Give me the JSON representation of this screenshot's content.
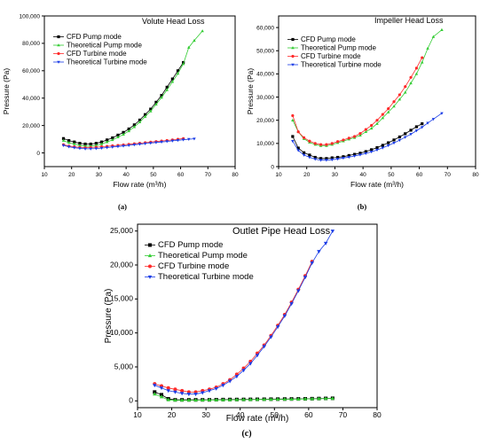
{
  "chart_data": [
    {
      "type": "line",
      "panel_label": "(a)",
      "title": "Volute Head Loss",
      "xlabel": "Flow rate (m³/h)",
      "ylabel": "Pressure (Pa)",
      "xlim": [
        10,
        80
      ],
      "ylim": [
        -10000,
        100000
      ],
      "xticks": [
        10,
        20,
        30,
        40,
        50,
        60,
        70,
        80
      ],
      "yticks": [
        0,
        20000,
        40000,
        60000,
        80000,
        100000
      ],
      "ytick_labels": [
        "0",
        "20,000",
        "40,000",
        "60,000",
        "80,000",
        "100,000"
      ],
      "legend_position": "top-left",
      "series": [
        {
          "name": "CFD Pump mode",
          "color": "#000000",
          "marker": "square",
          "x": [
            17,
            19,
            21,
            23,
            25,
            27,
            29,
            31,
            33,
            35,
            37,
            39,
            41,
            43,
            45,
            47,
            49,
            51,
            53,
            55,
            57,
            59,
            61
          ],
          "y": [
            10500,
            9000,
            8000,
            7000,
            6500,
            6500,
            7000,
            8000,
            9500,
            11000,
            13000,
            15000,
            17500,
            20500,
            24000,
            28000,
            32000,
            37000,
            42000,
            48000,
            54000,
            60000,
            66000
          ]
        },
        {
          "name": "Theoretical Pump mode",
          "color": "#33cc33",
          "marker": "triangle-up",
          "x": [
            17,
            19,
            21,
            23,
            25,
            27,
            29,
            31,
            33,
            35,
            37,
            39,
            41,
            43,
            45,
            47,
            49,
            51,
            53,
            55,
            57,
            59,
            61,
            63,
            65,
            68
          ],
          "y": [
            9000,
            7500,
            6500,
            5500,
            5000,
            5000,
            5500,
            6500,
            8000,
            9500,
            11500,
            13500,
            16000,
            19000,
            22500,
            26500,
            30500,
            35500,
            40500,
            46000,
            52000,
            58000,
            65000,
            77000,
            82000,
            89000
          ]
        },
        {
          "name": "CFD Turbine mode",
          "color": "#ff2a2a",
          "marker": "circle",
          "x": [
            17,
            19,
            21,
            23,
            25,
            27,
            29,
            31,
            33,
            35,
            37,
            39,
            41,
            43,
            45,
            47,
            49,
            51,
            53,
            55,
            57,
            59,
            61
          ],
          "y": [
            6000,
            5000,
            4500,
            4000,
            3800,
            4000,
            4200,
            4500,
            4800,
            5200,
            5500,
            5900,
            6300,
            6700,
            7100,
            7500,
            7900,
            8300,
            8700,
            9100,
            9500,
            10000,
            10500
          ]
        },
        {
          "name": "Theoretical Turbine mode",
          "color": "#1a3ce6",
          "marker": "triangle-down",
          "x": [
            17,
            19,
            21,
            23,
            25,
            27,
            29,
            31,
            33,
            35,
            37,
            39,
            41,
            43,
            45,
            47,
            49,
            51,
            53,
            55,
            57,
            59,
            61,
            63,
            65
          ],
          "y": [
            5500,
            4500,
            3800,
            3300,
            3000,
            3000,
            3200,
            3500,
            3900,
            4300,
            4700,
            5100,
            5500,
            6000,
            6400,
            6800,
            7200,
            7600,
            8000,
            8400,
            8800,
            9200,
            9600,
            10000,
            10300
          ]
        }
      ]
    },
    {
      "type": "line",
      "panel_label": "(b)",
      "title": "Impeller Head Loss",
      "xlabel": "Flow rate (m³/h)",
      "ylabel": "Pressure (Pa)",
      "xlim": [
        10,
        80
      ],
      "ylim": [
        0,
        65000
      ],
      "xticks": [
        10,
        20,
        30,
        40,
        50,
        60,
        70,
        80
      ],
      "yticks": [
        0,
        10000,
        20000,
        30000,
        40000,
        50000,
        60000
      ],
      "ytick_labels": [
        "0",
        "10,000",
        "20,000",
        "30,000",
        "40,000",
        "50,000",
        "60,000"
      ],
      "legend_position": "top-left",
      "series": [
        {
          "name": "CFD Pump mode",
          "color": "#000000",
          "marker": "square",
          "x": [
            15,
            17,
            19,
            21,
            23,
            25,
            27,
            29,
            31,
            33,
            35,
            37,
            39,
            41,
            43,
            45,
            47,
            49,
            51,
            53,
            55,
            57,
            59,
            61
          ],
          "y": [
            13000,
            8000,
            6000,
            5000,
            4000,
            3500,
            3500,
            3800,
            4000,
            4300,
            4800,
            5300,
            5800,
            6500,
            7300,
            8200,
            9200,
            10300,
            11500,
            12800,
            14200,
            15700,
            17200,
            18500
          ]
        },
        {
          "name": "Theoretical Pump mode",
          "color": "#33cc33",
          "marker": "triangle-up",
          "x": [
            15,
            17,
            19,
            21,
            23,
            25,
            27,
            29,
            31,
            33,
            35,
            37,
            39,
            41,
            43,
            45,
            47,
            49,
            51,
            53,
            55,
            57,
            59,
            61,
            63,
            65,
            68
          ],
          "y": [
            20000,
            15000,
            12000,
            10500,
            9500,
            9000,
            9000,
            9500,
            10300,
            11000,
            11800,
            12500,
            13500,
            15000,
            16500,
            18500,
            21000,
            23500,
            26000,
            29000,
            32000,
            36000,
            40000,
            45000,
            51000,
            56000,
            59000
          ]
        },
        {
          "name": "CFD Turbine mode",
          "color": "#ff2a2a",
          "marker": "circle",
          "x": [
            15,
            17,
            19,
            21,
            23,
            25,
            27,
            29,
            31,
            33,
            35,
            37,
            39,
            41,
            43,
            45,
            47,
            49,
            51,
            53,
            55,
            57,
            59,
            61
          ],
          "y": [
            22000,
            15000,
            12500,
            11000,
            10000,
            9500,
            9500,
            10000,
            10800,
            11500,
            12300,
            13000,
            14300,
            16000,
            17800,
            20000,
            22500,
            25000,
            28000,
            31000,
            34500,
            38500,
            42500,
            47000
          ]
        },
        {
          "name": "Theoretical Turbine mode",
          "color": "#1a3ce6",
          "marker": "triangle-down",
          "x": [
            15,
            17,
            19,
            21,
            23,
            25,
            27,
            29,
            31,
            33,
            35,
            37,
            39,
            41,
            43,
            45,
            47,
            49,
            51,
            53,
            55,
            57,
            59,
            61,
            63,
            65,
            68
          ],
          "y": [
            11000,
            7000,
            5000,
            4000,
            3200,
            2800,
            2800,
            3000,
            3300,
            3700,
            4100,
            4600,
            5100,
            5700,
            6400,
            7200,
            8100,
            9100,
            10200,
            11400,
            12700,
            14000,
            15500,
            17000,
            18800,
            20500,
            23000
          ]
        }
      ]
    },
    {
      "type": "line",
      "panel_label": "(c)",
      "title": "Outlet Pipe Head Loss",
      "xlabel": "Flow rate (m³/h)",
      "ylabel": "Pressure (Pa)",
      "xlim": [
        10,
        80
      ],
      "ylim": [
        -1000,
        26000
      ],
      "xticks": [
        10,
        20,
        30,
        40,
        50,
        60,
        70,
        80
      ],
      "yticks": [
        0,
        5000,
        10000,
        15000,
        20000,
        25000
      ],
      "ytick_labels": [
        "0",
        "5,000",
        "10,000",
        "15,000",
        "20,000",
        "25,000"
      ],
      "legend_position": "top-left",
      "series": [
        {
          "name": "CFD Pump mode",
          "color": "#000000",
          "marker": "square",
          "x": [
            15,
            17,
            19,
            21,
            23,
            25,
            27,
            29,
            31,
            33,
            35,
            37,
            39,
            41,
            43,
            45,
            47,
            49,
            51,
            53,
            55,
            57,
            59,
            61,
            63,
            65,
            67
          ],
          "y": [
            1300,
            900,
            300,
            150,
            150,
            150,
            150,
            150,
            150,
            170,
            190,
            200,
            200,
            210,
            220,
            230,
            240,
            250,
            260,
            270,
            280,
            290,
            300,
            320,
            340,
            360,
            380
          ]
        },
        {
          "name": "Theoretical Pump mode",
          "color": "#33cc33",
          "marker": "triangle-up",
          "x": [
            15,
            17,
            19,
            21,
            23,
            25,
            27,
            29,
            31,
            33,
            35,
            37,
            39,
            41,
            43,
            45,
            47,
            49,
            51,
            53,
            55,
            57,
            59,
            61,
            63,
            65,
            67
          ],
          "y": [
            1000,
            600,
            150,
            100,
            100,
            100,
            110,
            120,
            130,
            140,
            150,
            160,
            170,
            180,
            190,
            200,
            210,
            220,
            230,
            240,
            250,
            260,
            280,
            300,
            320,
            340,
            350
          ]
        },
        {
          "name": "CFD Turbine mode",
          "color": "#ff2a2a",
          "marker": "circle",
          "x": [
            15,
            17,
            19,
            21,
            23,
            25,
            27,
            29,
            31,
            33,
            35,
            37,
            39,
            41,
            43,
            45,
            47,
            49,
            51,
            53,
            55,
            57,
            59,
            61
          ],
          "y": [
            2500,
            2200,
            1900,
            1700,
            1500,
            1300,
            1300,
            1500,
            1700,
            2000,
            2500,
            3100,
            3900,
            4800,
            5800,
            7000,
            8200,
            9600,
            11100,
            12700,
            14500,
            16400,
            18400,
            20500
          ]
        },
        {
          "name": "Theoretical Turbine mode",
          "color": "#1a3ce6",
          "marker": "triangle-down",
          "x": [
            15,
            17,
            19,
            21,
            23,
            25,
            27,
            29,
            31,
            33,
            35,
            37,
            39,
            41,
            43,
            45,
            47,
            49,
            51,
            53,
            55,
            57,
            59,
            61,
            63,
            65,
            67
          ],
          "y": [
            2300,
            1900,
            1500,
            1300,
            1100,
            1000,
            1000,
            1200,
            1500,
            1800,
            2300,
            2900,
            3600,
            4500,
            5500,
            6700,
            8000,
            9400,
            10900,
            12500,
            14300,
            16200,
            18200,
            20300,
            22000,
            23200,
            25000
          ]
        }
      ]
    }
  ]
}
